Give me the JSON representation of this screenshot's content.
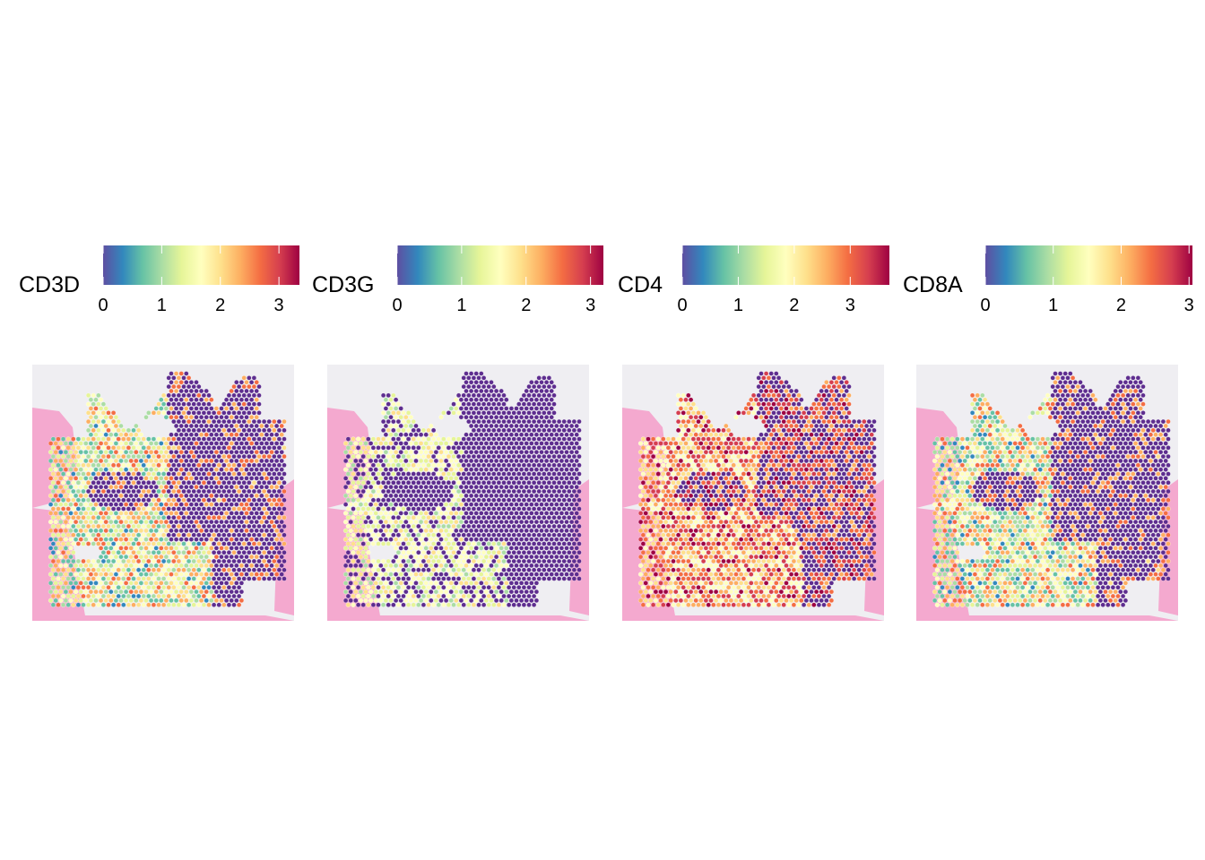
{
  "colormap": [
    "#5e4fa2",
    "#3288bd",
    "#66c2a5",
    "#abdda4",
    "#e6f598",
    "#ffffbf",
    "#fee08b",
    "#fdae61",
    "#f46d43",
    "#d53e4f",
    "#9e0142"
  ],
  "background_colors": {
    "tissue": "#f4a9cf",
    "slide": "#efeef2",
    "low_expression": "#5e2d8f"
  },
  "panels": [
    {
      "gene": "CD3D",
      "min": 0,
      "max": 3.35,
      "ticks": [
        "0",
        "1",
        "2",
        "3"
      ],
      "expression_profile": "moderate"
    },
    {
      "gene": "CD3G",
      "min": 0,
      "max": 3.2,
      "ticks": [
        "0",
        "1",
        "2",
        "3"
      ],
      "expression_profile": "low"
    },
    {
      "gene": "CD4",
      "min": 0,
      "max": 3.7,
      "ticks": [
        "0",
        "1",
        "2",
        "3"
      ],
      "expression_profile": "high"
    },
    {
      "gene": "CD8A",
      "min": 0,
      "max": 3.05,
      "ticks": [
        "0",
        "1",
        "2",
        "3"
      ],
      "expression_profile": "moderate"
    }
  ]
}
